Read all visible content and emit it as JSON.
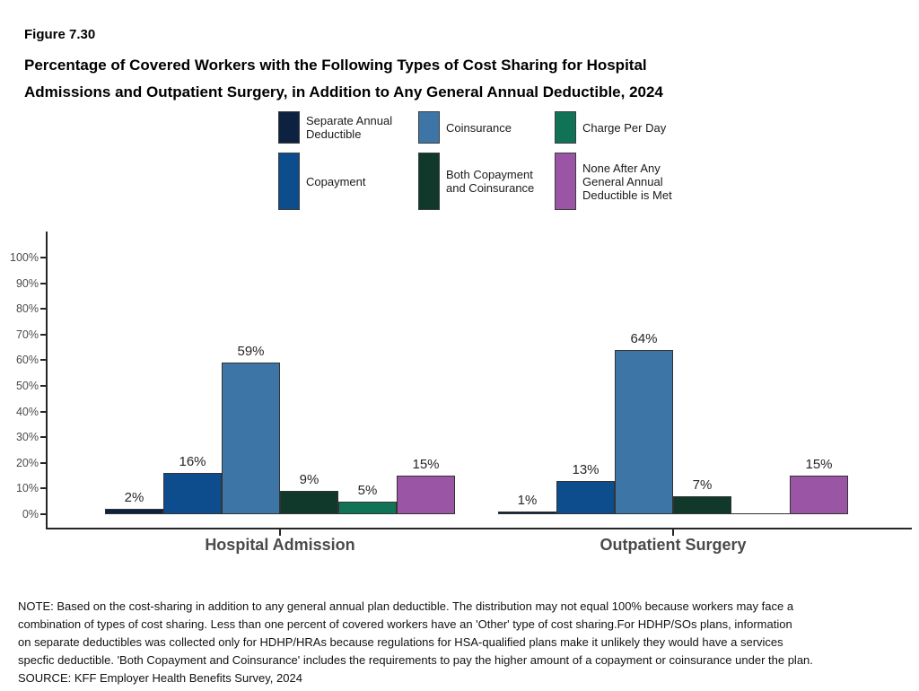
{
  "header": {
    "figure_label": "Figure 7.30",
    "title_lines": [
      "Percentage of Covered Workers with the Following Types of Cost Sharing for Hospital",
      "Admissions and Outpatient Surgery, in Addition to Any General Annual Deductible, 2024"
    ]
  },
  "legend": {
    "rows": [
      [
        {
          "label": "Separate Annual Deductible",
          "color": "#0d2240"
        },
        {
          "label": "Coinsurance",
          "color": "#3d76a6"
        },
        {
          "label": "Charge Per Day",
          "color": "#107355"
        }
      ],
      [
        {
          "label": "Copayment",
          "color": "#0e4d8d"
        },
        {
          "label": "Both Copayment and Coinsurance",
          "color": "#10392b"
        },
        {
          "label": "None After Any General Annual Deductible is Met",
          "color": "#9a55a5"
        }
      ]
    ]
  },
  "chart_data": {
    "type": "bar",
    "title": "Percentage of Covered Workers with the Following Types of Cost Sharing for Hospital Admissions and Outpatient Surgery, in Addition to Any General Annual Deductible, 2024",
    "figure_label": "Figure 7.30",
    "categories": [
      "Hospital Admission",
      "Outpatient Surgery"
    ],
    "series": [
      {
        "name": "Separate Annual Deductible",
        "color": "#0d2240",
        "values": [
          2,
          1
        ],
        "labels": [
          "2%",
          "1%"
        ]
      },
      {
        "name": "Copayment",
        "color": "#0e4d8d",
        "values": [
          16,
          13
        ],
        "labels": [
          "16%",
          "13%"
        ]
      },
      {
        "name": "Coinsurance",
        "color": "#3d76a6",
        "values": [
          59,
          64
        ],
        "labels": [
          "59%",
          "64%"
        ]
      },
      {
        "name": "Both Copayment and Coinsurance",
        "color": "#10392b",
        "values": [
          9,
          7
        ],
        "labels": [
          "9%",
          "7%"
        ]
      },
      {
        "name": "Charge Per Day",
        "color": "#107355",
        "values": [
          5,
          0
        ],
        "labels": [
          "5%",
          ""
        ]
      },
      {
        "name": "None After Any General Annual Deductible is Met",
        "color": "#9a55a5",
        "values": [
          15,
          15
        ],
        "labels": [
          "15%",
          "15%"
        ]
      }
    ],
    "xlabel": "",
    "ylabel": "",
    "ylim": [
      0,
      100
    ],
    "y_ticks": [
      "0%",
      "10%",
      "20%",
      "30%",
      "40%",
      "50%",
      "60%",
      "70%",
      "80%",
      "90%",
      "100%"
    ],
    "grid": false,
    "legend_position": "top"
  },
  "note": {
    "lines": [
      "NOTE: Based on the cost-sharing in addition to any general annual plan deductible. The distribution may not equal 100% because workers may face a",
      "combination of types of cost sharing. Less than one percent of covered workers have an 'Other' type of cost sharing.For HDHP/SOs plans, information",
      "on separate deductibles was collected only for HDHP/HRAs because regulations for HSA-qualified plans make it unlikely they would have a services",
      "specfic deductible. 'Both Copayment and Coinsurance' includes the requirements to pay the higher amount of a copayment or coinsurance under the plan."
    ],
    "source": "SOURCE: KFF Employer Health Benefits Survey, 2024"
  }
}
